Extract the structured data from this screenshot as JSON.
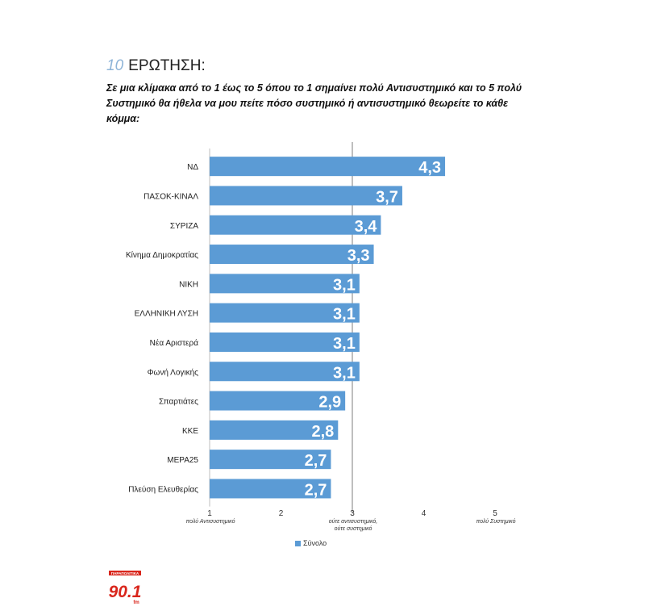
{
  "header": {
    "question_number": "10",
    "question_word": "ΕΡΩΤΗΣΗ:",
    "question_text": "Σε μια κλίμακα από το 1 έως το 5 όπου το 1 σημαίνει πολύ Αντισυστημικό και το 5 πολύ Συστημικό θα ήθελα να μου πείτε πόσο συστημικό ή αντισυστημικό θεωρείτε το κάθε κόμμα:"
  },
  "chart_data": {
    "type": "bar",
    "orientation": "horizontal",
    "categories": [
      "ΝΔ",
      "ΠΑΣΟΚ-ΚΙΝΑΛ",
      "ΣΥΡΙΖΑ",
      "Κίνημα Δημοκρατίας",
      "ΝΙΚΗ",
      "ΕΛΛΗΝΙΚΗ ΛΥΣΗ",
      "Νέα Αριστερά",
      "Φωνή Λογικής",
      "Σπαρτιάτες",
      "ΚΚΕ",
      "ΜΕΡΑ25",
      "Πλεύση Ελευθερίας"
    ],
    "series": [
      {
        "name": "Σύνολο",
        "values": [
          4.3,
          3.7,
          3.4,
          3.3,
          3.1,
          3.1,
          3.1,
          3.1,
          2.9,
          2.8,
          2.7,
          2.7
        ]
      }
    ],
    "value_labels": [
      "4,3",
      "3,7",
      "3,4",
      "3,3",
      "3,1",
      "3,1",
      "3,1",
      "3,1",
      "2,9",
      "2,8",
      "2,7",
      "2,7"
    ],
    "xlim": [
      1,
      5
    ],
    "ticks": [
      "1",
      "2",
      "3",
      "4",
      "5"
    ],
    "tick_annotations": [
      {
        "tick": 1,
        "lines": [
          "πολύ Αντισυστημικό"
        ]
      },
      {
        "tick": 3,
        "lines": [
          "ούτε αντισυστημικό,",
          "ούτε συστημικό"
        ]
      },
      {
        "tick": 5,
        "lines": [
          "πολύ Συστημικό"
        ]
      }
    ],
    "reference_line": 3,
    "legend_position": "bottom",
    "bar_color": "#5b9bd5"
  },
  "legend": {
    "label": "Σύνολο"
  },
  "logo": {
    "top_text": "ΠΑΡΑΠΟΛΙΤΙΚΑ",
    "number": "90.1",
    "unit": "fm"
  }
}
